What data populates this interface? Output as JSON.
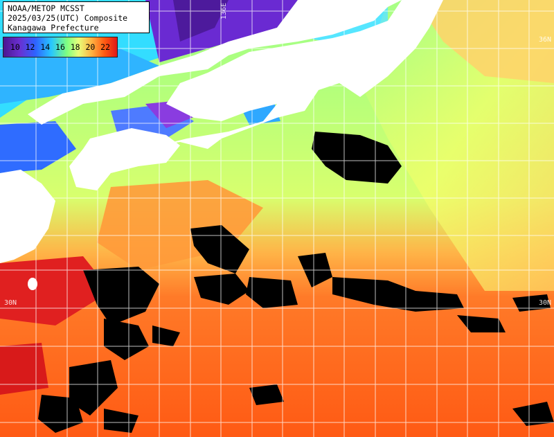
{
  "header": {
    "line1": "NOAA/METOP MCSST",
    "line2": "2025/03/25(UTC) Composite",
    "line3": "Kanagawa Prefecture"
  },
  "scale": {
    "labels": [
      "10",
      "12",
      "14",
      "16",
      "18",
      "20",
      "22"
    ],
    "colors": [
      "#4a1690",
      "#2f62ff",
      "#27c6ff",
      "#7fff80",
      "#e7ff7a",
      "#ffb040",
      "#e01818"
    ]
  },
  "grid_labels": {
    "lon_136e": "136E",
    "lat_36n": "36N",
    "lat_30n_left": "30N",
    "lat_30n_right": "30N"
  },
  "colors": {
    "land": "#ffffff",
    "cloud_mask": "#000000",
    "grid": "#ffffff"
  }
}
